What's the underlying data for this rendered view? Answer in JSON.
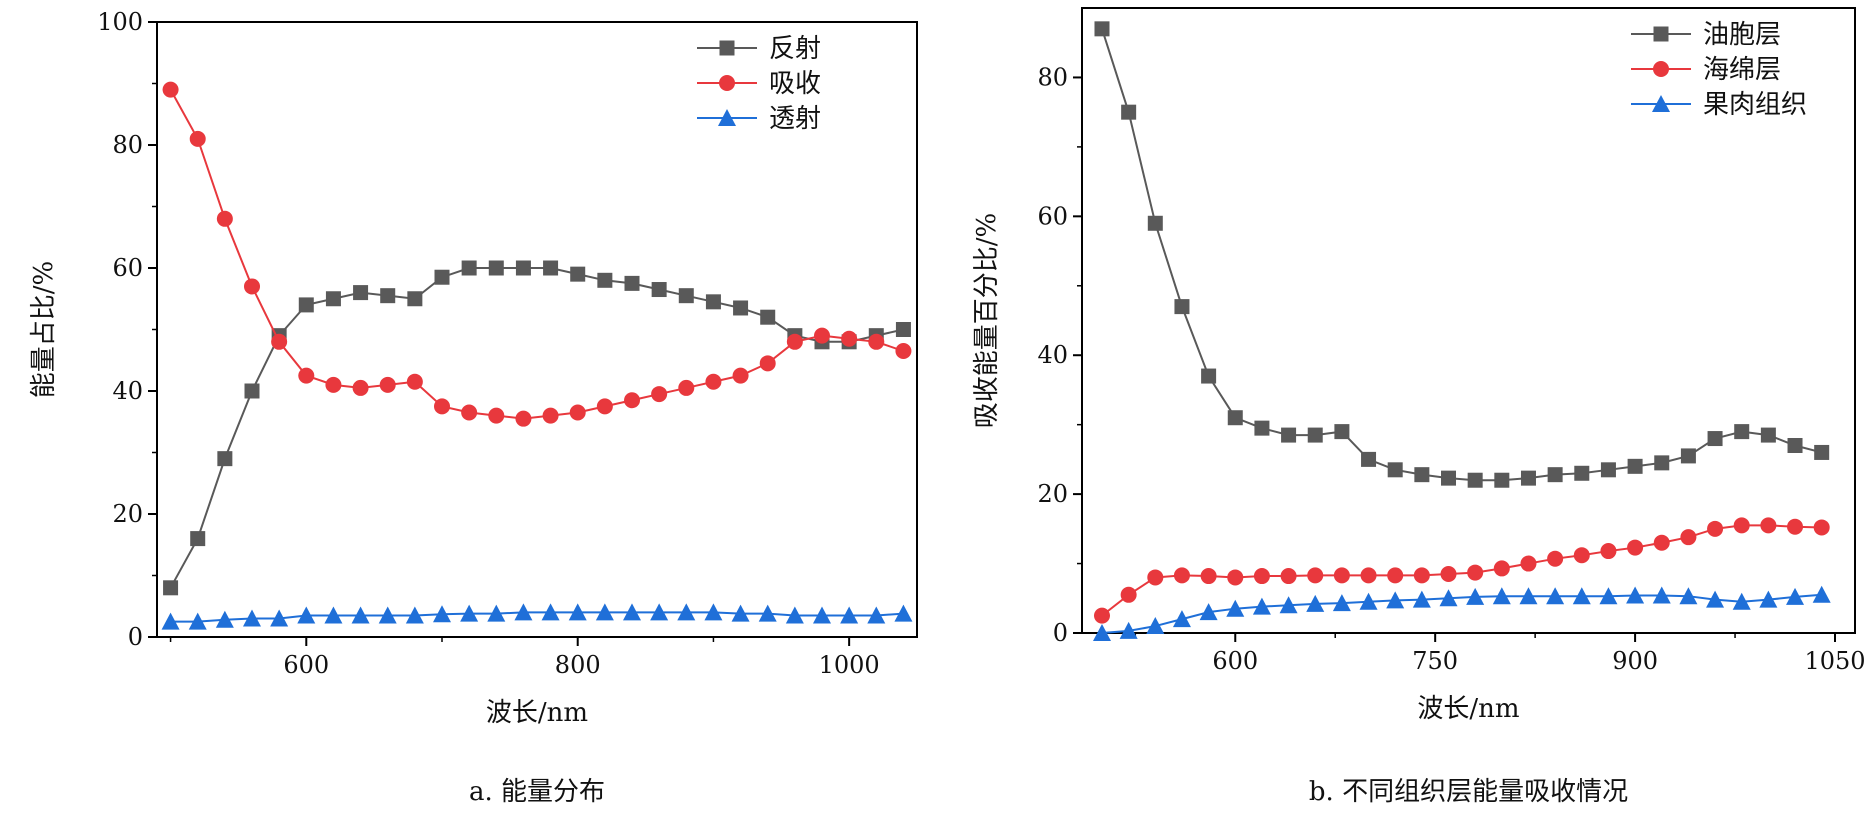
{
  "chart_data": [
    {
      "type": "line",
      "caption": "a. 能量分布",
      "xlabel": "波长/nm",
      "ylabel": "能量占比/%",
      "xlim": [
        490,
        1050
      ],
      "ylim": [
        0,
        100
      ],
      "xticks": [
        600,
        800,
        1000
      ],
      "yticks": [
        0,
        20,
        40,
        60,
        80,
        100
      ],
      "legend_position": "top-right",
      "grid": false,
      "x": [
        500,
        520,
        540,
        560,
        580,
        600,
        620,
        640,
        660,
        680,
        700,
        720,
        740,
        760,
        780,
        800,
        820,
        840,
        860,
        880,
        900,
        920,
        940,
        960,
        980,
        1000,
        1020,
        1040
      ],
      "series": [
        {
          "name": "反射",
          "marker": "square",
          "color": "#595959",
          "values": [
            8,
            16,
            29,
            40,
            49,
            54,
            55,
            56,
            55.5,
            55,
            58.5,
            60,
            60,
            60,
            60,
            59,
            58,
            57.5,
            56.5,
            55.5,
            54.5,
            53.5,
            52,
            49,
            48,
            48,
            49,
            50
          ]
        },
        {
          "name": "吸收",
          "marker": "circle",
          "color": "#e8383d",
          "values": [
            89,
            81,
            68,
            57,
            48,
            42.5,
            41,
            40.5,
            41,
            41.5,
            37.5,
            36.5,
            36,
            35.5,
            36,
            36.5,
            37.5,
            38.5,
            39.5,
            40.5,
            41.5,
            42.5,
            44.5,
            48,
            49,
            48.5,
            48,
            46.5
          ]
        },
        {
          "name": "透射",
          "marker": "triangle",
          "color": "#1f6fd8",
          "values": [
            2.5,
            2.5,
            2.8,
            3,
            3,
            3.5,
            3.5,
            3.5,
            3.5,
            3.5,
            3.7,
            3.8,
            3.8,
            4,
            4,
            4,
            4,
            4,
            4,
            4,
            4,
            3.8,
            3.8,
            3.5,
            3.5,
            3.5,
            3.5,
            3.8
          ]
        }
      ]
    },
    {
      "type": "line",
      "caption": "b. 不同组织层能量吸收情况",
      "xlabel": "波长/nm",
      "ylabel": "吸收能量百分比/%",
      "xlim": [
        485,
        1065
      ],
      "ylim": [
        0,
        90
      ],
      "xticks": [
        600,
        750,
        900,
        1050
      ],
      "yticks": [
        0,
        20,
        40,
        60,
        80
      ],
      "legend_position": "top-right",
      "grid": false,
      "x": [
        500,
        520,
        540,
        560,
        580,
        600,
        620,
        640,
        660,
        680,
        700,
        720,
        740,
        760,
        780,
        800,
        820,
        840,
        860,
        880,
        900,
        920,
        940,
        960,
        980,
        1000,
        1020,
        1040
      ],
      "series": [
        {
          "name": "油胞层",
          "marker": "square",
          "color": "#595959",
          "values": [
            87,
            75,
            59,
            47,
            37,
            31,
            29.5,
            28.5,
            28.5,
            29,
            25,
            23.5,
            22.8,
            22.3,
            22,
            22,
            22.3,
            22.8,
            23,
            23.5,
            24,
            24.5,
            25.5,
            28,
            29,
            28.5,
            27,
            26
          ]
        },
        {
          "name": "海绵层",
          "marker": "circle",
          "color": "#e8383d",
          "values": [
            2.5,
            5.5,
            8,
            8.3,
            8.2,
            8,
            8.2,
            8.2,
            8.3,
            8.3,
            8.3,
            8.3,
            8.3,
            8.5,
            8.7,
            9.3,
            10,
            10.7,
            11.2,
            11.8,
            12.3,
            13,
            13.8,
            15,
            15.5,
            15.5,
            15.3,
            15.2
          ]
        },
        {
          "name": "果肉组织",
          "marker": "triangle",
          "color": "#1f6fd8",
          "values": [
            0,
            0.3,
            1,
            2,
            3,
            3.5,
            3.8,
            4,
            4.2,
            4.3,
            4.5,
            4.7,
            4.8,
            5,
            5.2,
            5.3,
            5.3,
            5.3,
            5.3,
            5.3,
            5.4,
            5.4,
            5.3,
            4.8,
            4.5,
            4.8,
            5.2,
            5.5
          ]
        }
      ]
    }
  ]
}
